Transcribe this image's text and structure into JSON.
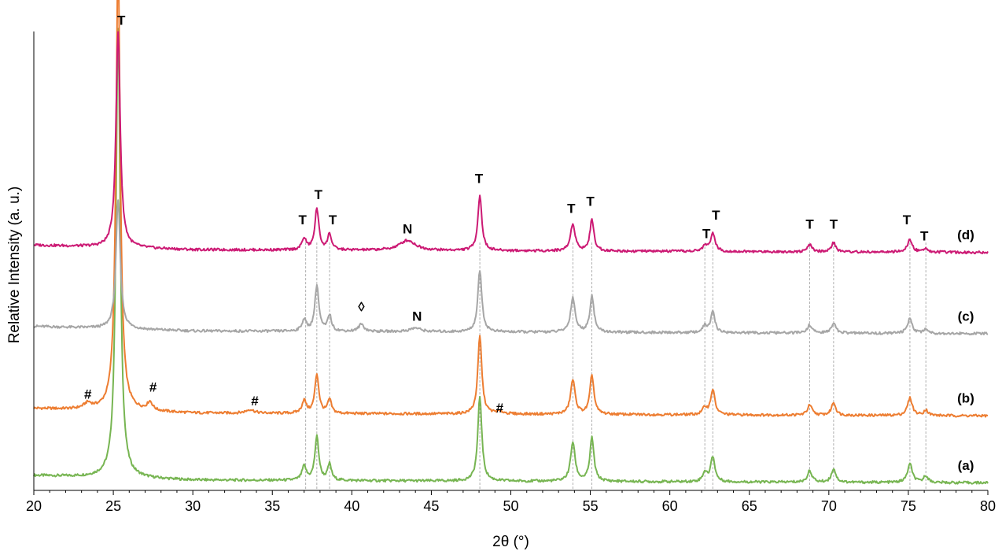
{
  "chart_data": {
    "type": "line",
    "xlabel": "2θ (°)",
    "ylabel": "Relative Intensity (a. u.)",
    "xlim": [
      20,
      80
    ],
    "ylim": [
      0,
      100
    ],
    "x_ticks": [
      "20",
      "25",
      "30",
      "35",
      "40",
      "45",
      "50",
      "55",
      "60",
      "65",
      "70",
      "75",
      "80"
    ],
    "grid": false,
    "reference_lines_x": [
      37.1,
      37.8,
      38.6,
      48.05,
      53.9,
      55.1,
      62.2,
      62.7,
      68.8,
      70.3,
      75.1,
      76.1
    ],
    "series": [
      {
        "name": "(a)",
        "color": "#77b552",
        "baseline": 2.0,
        "peaks": [
          [
            25.3,
            98,
            0.16
          ],
          [
            37.0,
            3.0,
            0.16
          ],
          [
            37.8,
            9.5,
            0.15
          ],
          [
            38.6,
            3.5,
            0.14
          ],
          [
            48.05,
            18.5,
            0.15
          ],
          [
            53.9,
            8.5,
            0.17
          ],
          [
            55.1,
            9.5,
            0.15
          ],
          [
            62.2,
            2.0,
            0.16
          ],
          [
            62.7,
            5.5,
            0.16
          ],
          [
            68.8,
            2.5,
            0.17
          ],
          [
            70.3,
            3.0,
            0.16
          ],
          [
            75.1,
            4.0,
            0.18
          ],
          [
            76.1,
            1.5,
            0.16
          ]
        ]
      },
      {
        "name": "(b)",
        "color": "#ed7d31",
        "baseline": 16.6,
        "peaks": [
          [
            25.3,
            98,
            0.16
          ],
          [
            23.4,
            1.2,
            0.3
          ],
          [
            27.3,
            1.8,
            0.2
          ],
          [
            33.6,
            0.8,
            0.3
          ],
          [
            37.0,
            2.8,
            0.16
          ],
          [
            37.8,
            8.5,
            0.15
          ],
          [
            38.6,
            3.0,
            0.14
          ],
          [
            48.05,
            17.0,
            0.15
          ],
          [
            49.3,
            0.5,
            0.3
          ],
          [
            53.9,
            7.5,
            0.17
          ],
          [
            55.1,
            8.5,
            0.15
          ],
          [
            62.2,
            1.5,
            0.16
          ],
          [
            62.7,
            5.5,
            0.16
          ],
          [
            68.8,
            2.2,
            0.17
          ],
          [
            70.3,
            2.8,
            0.16
          ],
          [
            75.1,
            3.8,
            0.18
          ],
          [
            76.1,
            1.2,
            0.16
          ]
        ]
      },
      {
        "name": "(c)",
        "color": "#a6a6a6",
        "baseline": 34.5,
        "peaks": [
          [
            25.3,
            28,
            0.16
          ],
          [
            37.0,
            2.5,
            0.16
          ],
          [
            37.8,
            10.0,
            0.15
          ],
          [
            38.6,
            3.5,
            0.14
          ],
          [
            40.6,
            1.6,
            0.2
          ],
          [
            44.0,
            0.8,
            0.4
          ],
          [
            48.05,
            13.5,
            0.15
          ],
          [
            53.9,
            7.5,
            0.17
          ],
          [
            55.1,
            8.0,
            0.15
          ],
          [
            62.2,
            1.4,
            0.16
          ],
          [
            62.7,
            4.5,
            0.16
          ],
          [
            68.8,
            1.8,
            0.17
          ],
          [
            70.3,
            2.3,
            0.16
          ],
          [
            75.1,
            3.2,
            0.18
          ],
          [
            76.1,
            1.0,
            0.16
          ]
        ]
      },
      {
        "name": "(d)",
        "color": "#cc1a74",
        "baseline": 52.2,
        "peaks": [
          [
            25.3,
            47,
            0.16
          ],
          [
            37.0,
            2.5,
            0.16
          ],
          [
            37.8,
            9.0,
            0.15
          ],
          [
            38.6,
            3.5,
            0.14
          ],
          [
            43.5,
            2.2,
            0.6
          ],
          [
            48.05,
            12.0,
            0.15
          ],
          [
            53.9,
            6.0,
            0.17
          ],
          [
            55.1,
            6.8,
            0.15
          ],
          [
            62.2,
            1.2,
            0.16
          ],
          [
            62.7,
            4.2,
            0.16
          ],
          [
            68.8,
            1.5,
            0.17
          ],
          [
            70.3,
            2.0,
            0.16
          ],
          [
            75.1,
            2.7,
            0.18
          ],
          [
            76.1,
            0.9,
            0.16
          ]
        ]
      }
    ],
    "annotations": [
      {
        "text": "T",
        "x": 25.5,
        "y": 101.5
      },
      {
        "text": "T",
        "x": 36.9,
        "y": 58.0
      },
      {
        "text": "T",
        "x": 37.9,
        "y": 63.5
      },
      {
        "text": "T",
        "x": 38.8,
        "y": 58.0
      },
      {
        "text": "N",
        "x": 43.5,
        "y": 56.0
      },
      {
        "text": "T",
        "x": 48.0,
        "y": 67.0
      },
      {
        "text": "T",
        "x": 53.8,
        "y": 60.5
      },
      {
        "text": "T",
        "x": 55.0,
        "y": 62.0
      },
      {
        "text": "T",
        "x": 62.3,
        "y": 55.0
      },
      {
        "text": "T",
        "x": 62.9,
        "y": 59.0
      },
      {
        "text": "T",
        "x": 68.8,
        "y": 57.0
      },
      {
        "text": "T",
        "x": 70.3,
        "y": 57.0
      },
      {
        "text": "T",
        "x": 74.9,
        "y": 58.0
      },
      {
        "text": "T",
        "x": 76.0,
        "y": 54.5
      },
      {
        "text": "◊",
        "x": 40.6,
        "y": 39.0
      },
      {
        "text": "N",
        "x": 44.1,
        "y": 37.0
      },
      {
        "text": "#",
        "x": 23.4,
        "y": 20.0
      },
      {
        "text": "#",
        "x": 27.5,
        "y": 21.5
      },
      {
        "text": "#",
        "x": 33.9,
        "y": 18.5
      },
      {
        "text": "#",
        "x": 49.3,
        "y": 17.0
      }
    ]
  }
}
